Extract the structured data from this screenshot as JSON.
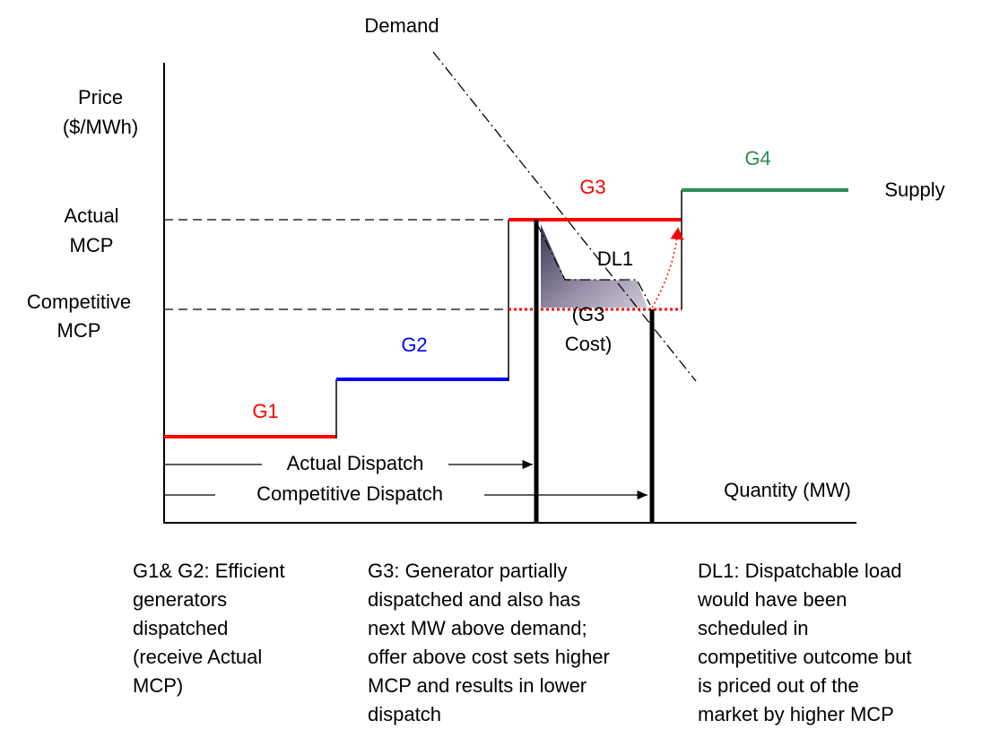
{
  "axes": {
    "demand": "Demand",
    "price": [
      "Price",
      "($/MWh)"
    ],
    "actual_mcp": [
      "Actual",
      "MCP"
    ],
    "competitive_mcp": [
      "Competitive",
      "MCP"
    ],
    "quantity": "Quantity (MW)"
  },
  "labels": {
    "g1": "G1",
    "g2": "G2",
    "g3": "G3",
    "g4": "G4",
    "supply": "Supply",
    "dl1": "DL1",
    "g3_cost": [
      "(G3",
      "Cost)"
    ],
    "actual_dispatch": "Actual Dispatch",
    "competitive_dispatch": "Competitive Dispatch"
  },
  "notes": [
    [
      "G1& G2: Efficient",
      "generators",
      "dispatched",
      "(receive Actual",
      "MCP)"
    ],
    [
      "G3: Generator partially",
      "dispatched and also has",
      "next MW above demand;",
      "offer above cost sets higher",
      "MCP and results in lower",
      "dispatch"
    ],
    [
      "DL1: Dispatchable load",
      "would have been",
      "scheduled in",
      "competitive outcome but",
      "is priced out of the",
      "market by higher MCP"
    ]
  ]
}
